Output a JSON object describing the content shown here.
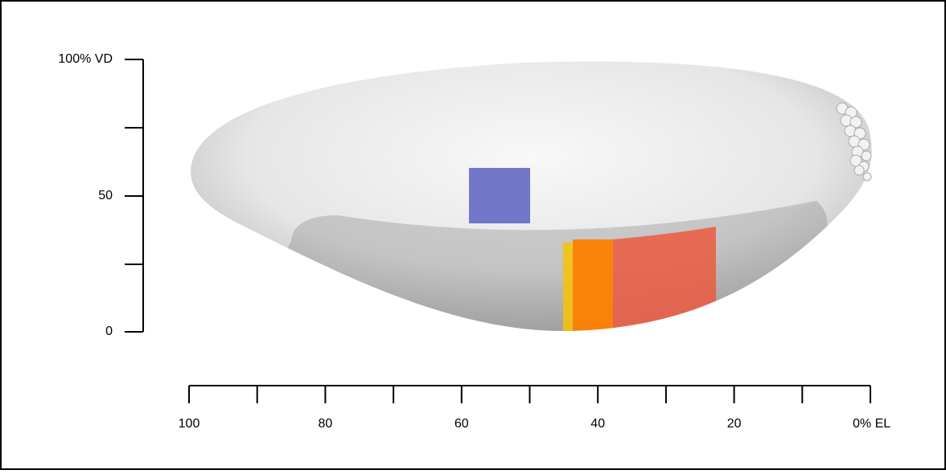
{
  "x_axis": {
    "labels": [
      "100",
      "80",
      "60",
      "40",
      "20",
      "0% EL"
    ]
  },
  "y_axis": {
    "labels": [
      "100% VD",
      "50",
      "0"
    ]
  }
}
